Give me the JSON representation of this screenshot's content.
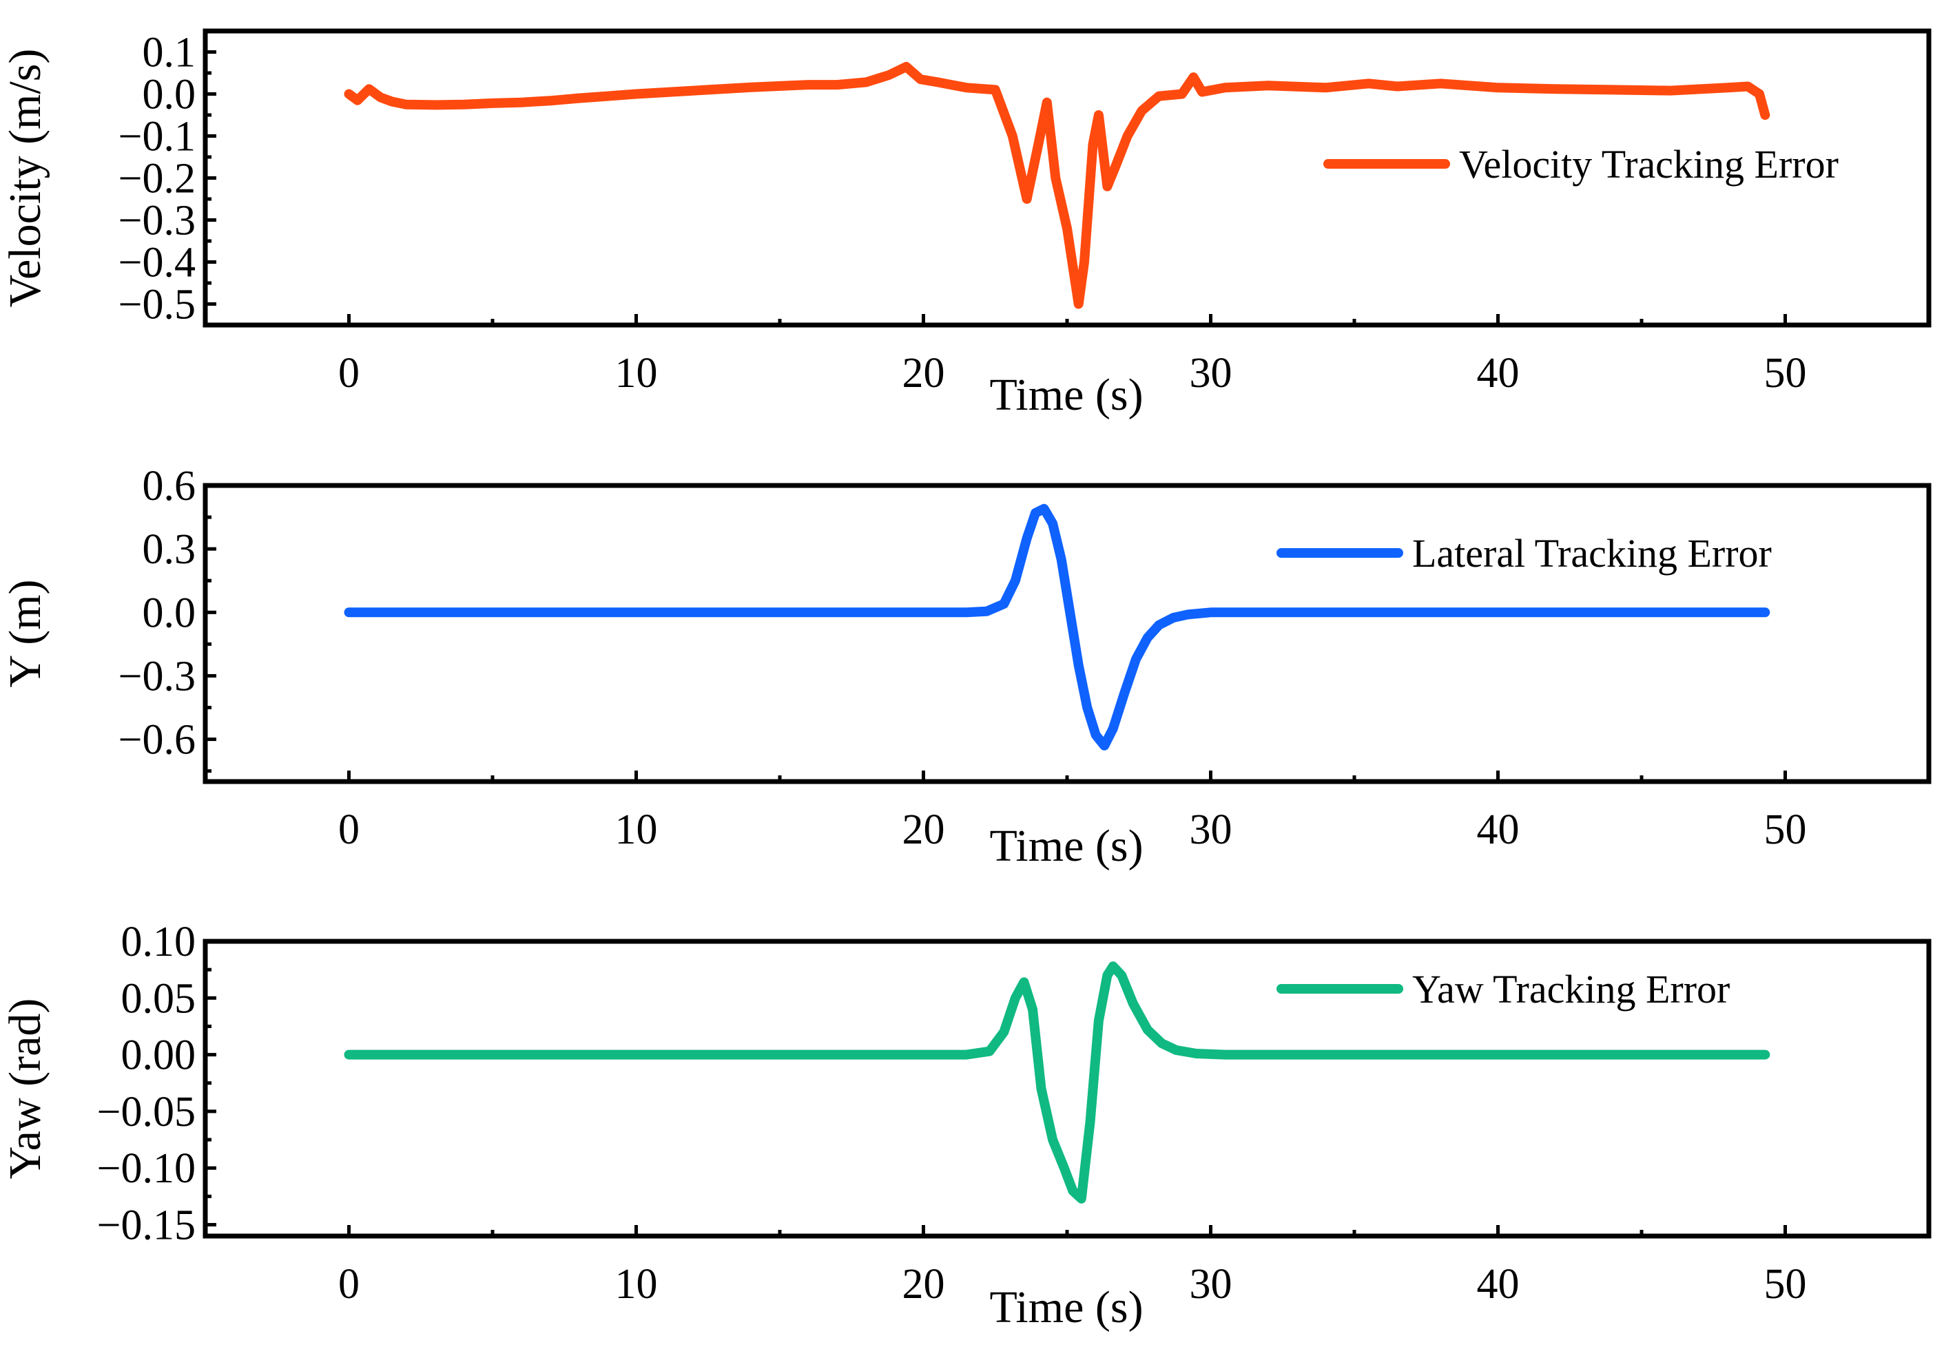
{
  "chart_data": [
    {
      "type": "line",
      "xlabel": "Time (s)",
      "ylabel": "Velocity (m/s)",
      "xlim": [
        -5,
        55
      ],
      "ylim": [
        -0.55,
        0.15
      ],
      "xticks": [
        0,
        10,
        20,
        30,
        40,
        50
      ],
      "xtick_labels": [
        "0",
        "10",
        "20",
        "30",
        "40",
        "50"
      ],
      "yticks": [
        0.1,
        0.0,
        -0.1,
        -0.2,
        -0.3,
        -0.4,
        -0.5
      ],
      "ytick_labels": [
        "0.1",
        "0.0",
        "−0.1",
        "−0.2",
        "−0.3",
        "−0.4",
        "−0.5"
      ],
      "grid": false,
      "legend_position": "upper-right",
      "series": [
        {
          "name": "Velocity Tracking Error",
          "color": "#ff4a0f",
          "x": [
            0,
            0.3,
            0.7,
            1.1,
            1.5,
            2,
            3,
            4,
            5,
            6,
            7,
            8,
            9,
            10,
            12,
            14,
            16,
            17,
            18,
            18.8,
            19.4,
            19.9,
            20.5,
            21.5,
            22.5,
            23.1,
            23.6,
            24.0,
            24.3,
            24.6,
            25.0,
            25.4,
            25.6,
            25.9,
            26.1,
            26.4,
            26.7,
            27.1,
            27.6,
            28.2,
            29.0,
            29.4,
            29.7,
            30.5,
            32,
            34,
            35.5,
            36.5,
            38,
            40,
            42,
            44,
            46,
            48,
            48.7,
            49.1,
            49.3
          ],
          "y": [
            0.0,
            -0.015,
            0.012,
            -0.008,
            -0.018,
            -0.025,
            -0.026,
            -0.025,
            -0.022,
            -0.02,
            -0.016,
            -0.01,
            -0.005,
            0.0,
            0.008,
            0.016,
            0.022,
            0.022,
            0.028,
            0.045,
            0.065,
            0.035,
            0.028,
            0.015,
            0.01,
            -0.1,
            -0.25,
            -0.12,
            -0.02,
            -0.2,
            -0.32,
            -0.5,
            -0.4,
            -0.12,
            -0.05,
            -0.22,
            -0.17,
            -0.1,
            -0.04,
            -0.005,
            0.0,
            0.04,
            0.005,
            0.015,
            0.02,
            0.015,
            0.025,
            0.018,
            0.025,
            0.015,
            0.012,
            0.01,
            0.008,
            0.015,
            0.018,
            0.0,
            -0.05
          ]
        }
      ]
    },
    {
      "type": "line",
      "xlabel": "Time (s)",
      "ylabel": "Y (m)",
      "xlim": [
        -5,
        55
      ],
      "ylim": [
        -0.8,
        0.6
      ],
      "xticks": [
        0,
        10,
        20,
        30,
        40,
        50
      ],
      "xtick_labels": [
        "0",
        "10",
        "20",
        "30",
        "40",
        "50"
      ],
      "yticks": [
        0.6,
        0.3,
        0.0,
        -0.3,
        -0.6
      ],
      "ytick_labels": [
        "0.6",
        "0.3",
        "0.0",
        "−0.3",
        "−0.6"
      ],
      "grid": false,
      "legend_position": "upper-right",
      "series": [
        {
          "name": "Lateral Tracking Error",
          "color": "#0f62fe",
          "x": [
            0,
            5,
            10,
            15,
            20,
            21.5,
            22.2,
            22.8,
            23.2,
            23.6,
            23.9,
            24.2,
            24.5,
            24.8,
            25.1,
            25.4,
            25.7,
            26.0,
            26.3,
            26.6,
            27.0,
            27.4,
            27.8,
            28.2,
            28.7,
            29.2,
            30,
            31,
            35,
            40,
            45,
            49.3
          ],
          "y": [
            0,
            0,
            0,
            0,
            0,
            0.0,
            0.005,
            0.04,
            0.15,
            0.35,
            0.47,
            0.49,
            0.42,
            0.25,
            0.0,
            -0.25,
            -0.45,
            -0.58,
            -0.63,
            -0.55,
            -0.38,
            -0.22,
            -0.12,
            -0.06,
            -0.025,
            -0.01,
            0.0,
            0.0,
            0.0,
            0.0,
            0.0,
            0.0
          ]
        }
      ]
    },
    {
      "type": "line",
      "xlabel": "Time (s)",
      "ylabel": "Yaw (rad)",
      "xlim": [
        -5,
        55
      ],
      "ylim": [
        -0.16,
        0.1
      ],
      "xticks": [
        0,
        10,
        20,
        30,
        40,
        50
      ],
      "xtick_labels": [
        "0",
        "10",
        "20",
        "30",
        "40",
        "50"
      ],
      "yticks": [
        0.1,
        0.05,
        0.0,
        -0.05,
        -0.1,
        -0.15
      ],
      "ytick_labels": [
        "0.10",
        "0.05",
        "0.00",
        "−0.05",
        "−0.10",
        "−0.15"
      ],
      "grid": false,
      "legend_position": "upper-right",
      "series": [
        {
          "name": "Yaw Tracking Error",
          "color": "#10b981",
          "x": [
            0,
            5,
            10,
            15,
            20,
            21.5,
            22.3,
            22.8,
            23.2,
            23.5,
            23.8,
            24.1,
            24.5,
            24.9,
            25.2,
            25.5,
            25.8,
            26.1,
            26.4,
            26.6,
            26.9,
            27.3,
            27.8,
            28.3,
            28.8,
            29.5,
            30.5,
            35,
            40,
            45,
            49.3
          ],
          "y": [
            0,
            0,
            0,
            0,
            0,
            0.0,
            0.003,
            0.02,
            0.05,
            0.064,
            0.04,
            -0.03,
            -0.075,
            -0.1,
            -0.12,
            -0.127,
            -0.06,
            0.03,
            0.07,
            0.078,
            0.07,
            0.045,
            0.022,
            0.01,
            0.004,
            0.001,
            0.0,
            0.0,
            0.0,
            0.0,
            0.0
          ]
        }
      ]
    }
  ]
}
